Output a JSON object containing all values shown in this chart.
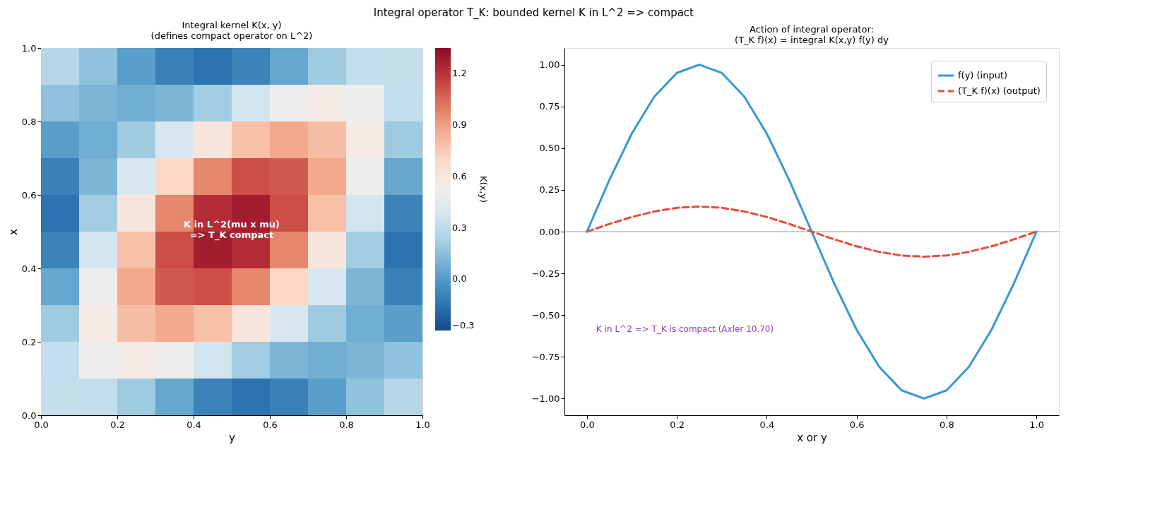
{
  "chart_data": [
    {
      "type": "heatmap",
      "title": "Integral operator T_K: bounded kernel K in L^2 => compact",
      "subtitle": "Integral kernel K(x, y)\n(defines compact operator on L^2)",
      "xlabel": "y",
      "ylabel": "x",
      "clabel": "K(x,y)",
      "x": [
        0.05,
        0.15,
        0.25,
        0.35,
        0.45,
        0.55,
        0.65,
        0.75,
        0.85,
        0.95
      ],
      "y": [
        0.95,
        0.85,
        0.75,
        0.65,
        0.55,
        0.45,
        0.35,
        0.25,
        0.15,
        0.05
      ],
      "xlim": [
        0,
        1
      ],
      "ylim": [
        0,
        1
      ],
      "xticks": [
        {
          "value": 0,
          "label": "0.0"
        },
        {
          "value": 0.2,
          "label": "0.2"
        },
        {
          "value": 0.4,
          "label": "0.4"
        },
        {
          "value": 0.6,
          "label": "0.6"
        },
        {
          "value": 0.8,
          "label": "0.8"
        },
        {
          "value": 1,
          "label": "1.0"
        }
      ],
      "yticks": [
        {
          "value": 0,
          "label": "0.0"
        },
        {
          "value": 0.2,
          "label": "0.2"
        },
        {
          "value": 0.4,
          "label": "0.4"
        },
        {
          "value": 0.6,
          "label": "0.6"
        },
        {
          "value": 0.8,
          "label": "0.8"
        },
        {
          "value": 1,
          "label": "1.0"
        }
      ],
      "clim": [
        -0.3,
        1.35
      ],
      "cticks": [
        {
          "value": -0.3,
          "label": "−0.3"
        },
        {
          "value": 0,
          "label": "0.0"
        },
        {
          "value": 0.3,
          "label": "0.3"
        },
        {
          "value": 0.6,
          "label": "0.6"
        },
        {
          "value": 0.9,
          "label": "0.9"
        },
        {
          "value": 1.2,
          "label": "1.2"
        }
      ],
      "cells": [
        [
          0.27,
          0.16,
          0.02,
          -0.1,
          -0.15,
          -0.09,
          0.05,
          0.2,
          0.31,
          0.32
        ],
        [
          0.16,
          0.11,
          0.08,
          0.11,
          0.21,
          0.36,
          0.5,
          0.56,
          0.51,
          0.31
        ],
        [
          0.02,
          0.08,
          0.2,
          0.39,
          0.61,
          0.79,
          0.87,
          0.8,
          0.56,
          0.2
        ],
        [
          -0.1,
          0.11,
          0.39,
          0.7,
          0.97,
          1.12,
          1.09,
          0.87,
          0.5,
          0.05
        ],
        [
          -0.15,
          0.21,
          0.61,
          0.97,
          1.22,
          1.28,
          1.12,
          0.79,
          0.36,
          -0.09
        ],
        [
          -0.09,
          0.36,
          0.79,
          1.12,
          1.28,
          1.22,
          0.97,
          0.61,
          0.21,
          -0.15
        ],
        [
          0.05,
          0.5,
          0.87,
          1.09,
          1.12,
          0.97,
          0.7,
          0.39,
          0.11,
          -0.1
        ],
        [
          0.2,
          0.56,
          0.8,
          0.87,
          0.79,
          0.61,
          0.39,
          0.2,
          0.08,
          0.02
        ],
        [
          0.31,
          0.51,
          0.56,
          0.5,
          0.36,
          0.21,
          0.11,
          0.08,
          0.11,
          0.16
        ],
        [
          0.32,
          0.31,
          0.2,
          0.05,
          -0.09,
          -0.15,
          -0.1,
          0.02,
          0.16,
          0.27
        ]
      ],
      "annotations": [
        "K in L^2(mu x mu)\n=> T_K compact"
      ]
    },
    {
      "type": "line",
      "subtitle": "Action of integral operator:\n(T_K f)(x) = integral K(x,y) f(y) dy",
      "xlabel": "x or y",
      "x": [
        0,
        0.05,
        0.1,
        0.15,
        0.2,
        0.25,
        0.3,
        0.35,
        0.4,
        0.45,
        0.5,
        0.55,
        0.6,
        0.65,
        0.7,
        0.75,
        0.8,
        0.85,
        0.9,
        0.95,
        1
      ],
      "series": [
        {
          "name": "f(y) (input)",
          "color": "#3498db",
          "line_style": "solid",
          "values": [
            0,
            0.309,
            0.588,
            0.809,
            0.951,
            1,
            0.951,
            0.809,
            0.588,
            0.309,
            0,
            -0.309,
            -0.588,
            -0.809,
            -0.951,
            -1,
            -0.951,
            -0.809,
            -0.588,
            -0.309,
            0
          ]
        },
        {
          "name": "(T_K f)(x) (output)",
          "color": "#e74c3c",
          "line_style": "dashed",
          "values": [
            0,
            0.046,
            0.088,
            0.121,
            0.143,
            0.15,
            0.143,
            0.121,
            0.088,
            0.046,
            0,
            -0.046,
            -0.088,
            -0.121,
            -0.143,
            -0.15,
            -0.143,
            -0.121,
            -0.088,
            -0.046,
            0
          ]
        }
      ],
      "xlim": [
        -0.05,
        1.05
      ],
      "ylim": [
        -1.1,
        1.1
      ],
      "xticks": [
        {
          "value": 0,
          "label": "0.0"
        },
        {
          "value": 0.2,
          "label": "0.2"
        },
        {
          "value": 0.4,
          "label": "0.4"
        },
        {
          "value": 0.6,
          "label": "0.6"
        },
        {
          "value": 0.8,
          "label": "0.8"
        },
        {
          "value": 1,
          "label": "1.0"
        }
      ],
      "yticks": [
        {
          "value": -1,
          "label": "−1.00"
        },
        {
          "value": -0.75,
          "label": "−0.75"
        },
        {
          "value": -0.5,
          "label": "−0.50"
        },
        {
          "value": -0.25,
          "label": "−0.25"
        },
        {
          "value": 0,
          "label": "0.00"
        },
        {
          "value": 0.25,
          "label": "0.25"
        },
        {
          "value": 0.5,
          "label": "0.50"
        },
        {
          "value": 0.75,
          "label": "0.75"
        },
        {
          "value": 1,
          "label": "1.00"
        }
      ],
      "ref_lines": [
        {
          "axis": "y",
          "value": 0,
          "color": "#808080"
        }
      ],
      "legend": "top right",
      "grid": false,
      "marker": "none",
      "annotations": [
        "K in L^2  =>  T_K is compact (Axler 10.70)"
      ]
    }
  ]
}
